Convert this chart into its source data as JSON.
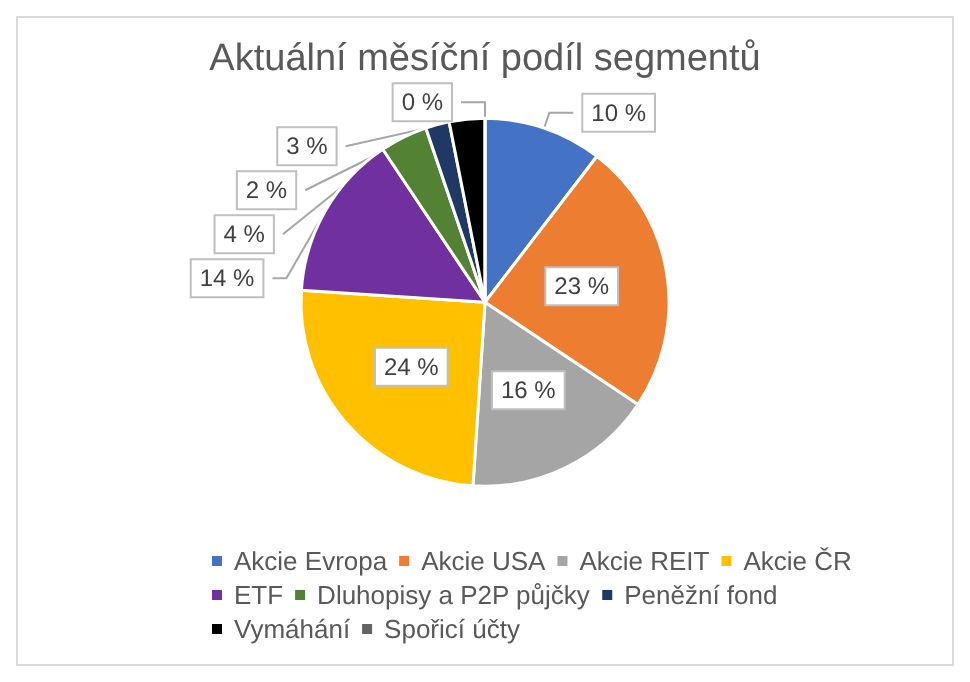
{
  "chart_data": {
    "type": "pie",
    "title": "Aktuální měsíční podíl segmentů",
    "categories": [
      "Akcie Evropa",
      "Akcie USA",
      "Akcie REIT",
      "Akcie ČR",
      "ETF",
      "Dluhopisy a P2P půjčky",
      "Peněžní fond",
      "Vymáhání",
      "Spořicí účty"
    ],
    "values": [
      10,
      23,
      16,
      24,
      14,
      4,
      2,
      3,
      0
    ],
    "value_labels": [
      "10 %",
      "23 %",
      "16 %",
      "24 %",
      "14 %",
      "4 %",
      "2 %",
      "3 %",
      "0 %"
    ],
    "colors": [
      "#4472c4",
      "#ed7d31",
      "#a5a5a5",
      "#ffc000",
      "#7030a0",
      "#548235",
      "#203864",
      "#000000",
      "#636363"
    ],
    "legend": "bottom"
  }
}
